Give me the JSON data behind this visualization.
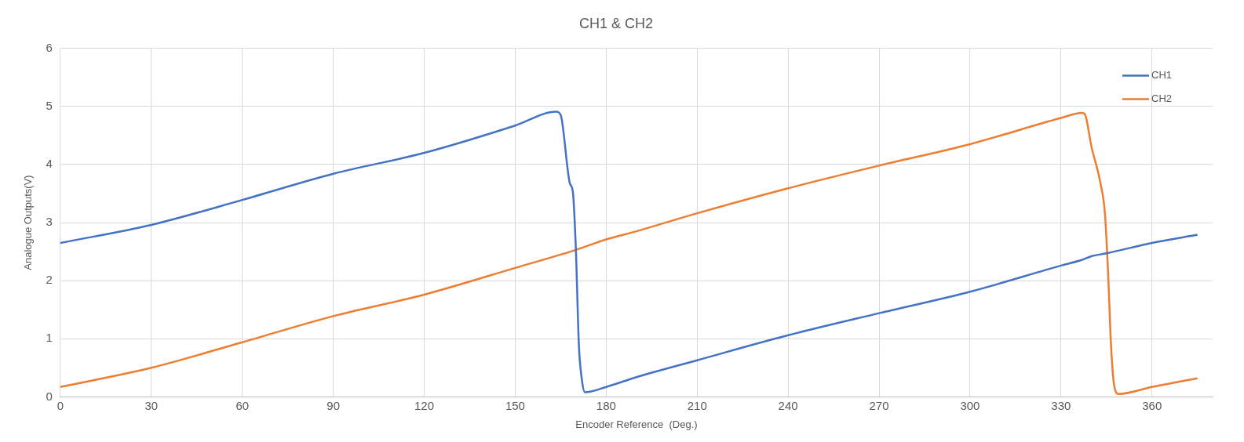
{
  "chart_data": {
    "type": "line",
    "title": "CH1 & CH2",
    "xlabel": "Encoder Reference  (Deg.)",
    "ylabel": "Analogue Outputs(V)",
    "xlim": [
      0,
      380
    ],
    "xticks": [
      0,
      30,
      60,
      90,
      120,
      150,
      180,
      210,
      240,
      270,
      300,
      330,
      360
    ],
    "ylim": [
      0,
      6
    ],
    "yticks": [
      0,
      1,
      2,
      3,
      4,
      5,
      6
    ],
    "grid": true,
    "legend": "top right",
    "marker": "none",
    "line_style": "solid",
    "series": [
      {
        "name": "CH1",
        "color": "#4472c4",
        "x": [
          0,
          30,
          60,
          90,
          120,
          150,
          163.5,
          165,
          168,
          169,
          170,
          171,
          172,
          173,
          180,
          190,
          210,
          240,
          270,
          300,
          330,
          337,
          340,
          345,
          360,
          375
        ],
        "values": [
          2.65,
          2.96,
          3.39,
          3.84,
          4.2,
          4.67,
          4.91,
          4.85,
          3.68,
          3.53,
          2.55,
          0.89,
          0.29,
          0.08,
          0.17,
          0.34,
          0.63,
          1.06,
          1.44,
          1.81,
          2.26,
          2.36,
          2.42,
          2.47,
          2.65,
          2.79
        ]
      },
      {
        "name": "CH2",
        "color": "#ed7d31",
        "x": [
          0,
          30,
          60,
          90,
          120,
          150,
          170,
          180,
          190,
          210,
          240,
          270,
          300,
          330,
          337,
          338,
          340,
          343,
          344.5,
          345.5,
          346.5,
          347.5,
          349,
          360,
          375
        ],
        "values": [
          0.17,
          0.5,
          0.94,
          1.39,
          1.76,
          2.22,
          2.53,
          2.71,
          2.85,
          3.16,
          3.59,
          3.98,
          4.35,
          4.8,
          4.89,
          4.85,
          4.32,
          3.68,
          3.15,
          2.17,
          0.89,
          0.21,
          0.05,
          0.17,
          0.32
        ]
      }
    ]
  }
}
